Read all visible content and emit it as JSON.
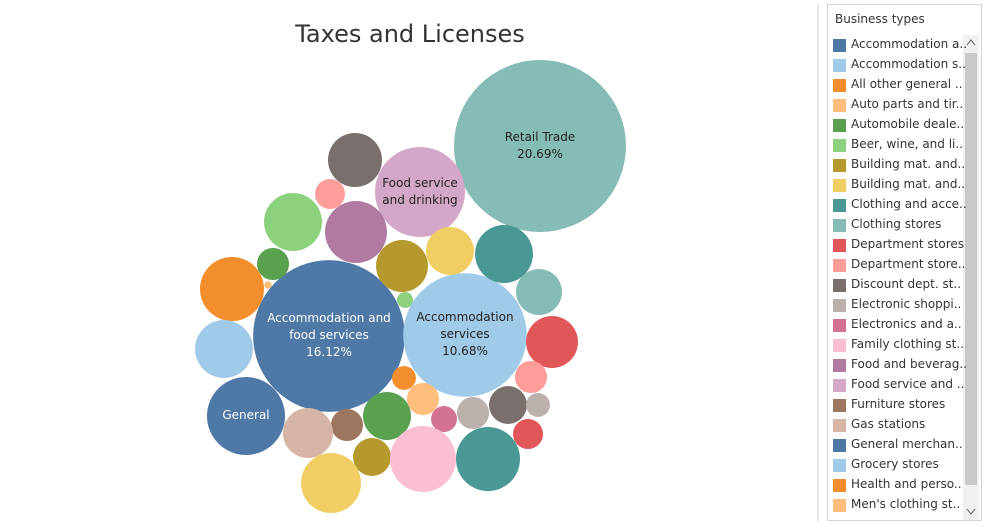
{
  "chart_data": {
    "type": "bubble",
    "title": "Taxes and Licenses",
    "categories": [
      "Retail Trade",
      "Accommodation and food services",
      "Accommodation services",
      "General",
      "Food service and drinking",
      null,
      null,
      null,
      null,
      null,
      null,
      null,
      null,
      null,
      null,
      null,
      null,
      null,
      null,
      null,
      null,
      null,
      null,
      null,
      null,
      null,
      null,
      null,
      null,
      null,
      null,
      null,
      null,
      null
    ],
    "values": [
      20.69,
      16.12,
      10.68,
      4.26,
      5.67,
      2.04,
      0.63,
      2.35,
      2.69,
      0.72,
      2.87,
      0.04,
      2.35,
      1.89,
      1.61,
      2.35,
      1.48,
      0.18,
      1.89,
      0.72,
      0.4,
      0.72,
      1.01,
      0.4,
      0.63,
      0.72,
      0.47,
      1.61,
      0.72,
      1.75,
      1.01,
      3.05,
      2.87,
      2.52
    ],
    "value_labels": [
      "20.69%",
      "16.12%",
      "10.68%",
      null,
      null,
      null,
      null,
      null,
      null,
      null,
      null,
      null,
      null,
      null,
      null,
      null,
      null,
      null,
      null,
      null,
      null,
      null,
      null,
      null,
      null,
      null,
      null,
      null,
      null,
      null,
      null,
      null,
      null,
      null
    ],
    "colors": [
      "#86bcb6",
      "#4e79a7",
      "#a0cbe8",
      "#4e79a7",
      "#d4a6c8",
      "#79706e",
      "#ff9d9a",
      "#8cd17d",
      "#b07aa1",
      "#59a14f",
      "#f28e2b",
      "#ffbe7d",
      "#a0cbe8",
      "#b6992d",
      "#f1ce63",
      "#499894",
      "#86bcb6",
      "#8cd17d",
      "#e15759",
      "#ff9d9a",
      "#f28e2b",
      "#ffbe7d",
      "#79706e",
      "#bab0ac",
      "#e15759",
      "#bab0ac",
      "#d37295",
      "#59a14f",
      "#9d7660",
      "#d7b5a6",
      "#b6992d",
      "#fabfd2",
      "#499894",
      "#f1ce63"
    ]
  },
  "legend": {
    "title": "Business types",
    "entries": [
      {
        "name": "Accommodation a..",
        "color": "#4e79a7"
      },
      {
        "name": "Accommodation s..",
        "color": "#a0cbe8"
      },
      {
        "name": "All other general ..",
        "color": "#f28e2b"
      },
      {
        "name": "Auto parts and tir..",
        "color": "#ffbe7d"
      },
      {
        "name": "Automobile deale..",
        "color": "#59a14f"
      },
      {
        "name": "Beer, wine, and li..",
        "color": "#8cd17d"
      },
      {
        "name": "Building mat. and..",
        "color": "#b6992d"
      },
      {
        "name": "Building mat. and..",
        "color": "#f1ce63"
      },
      {
        "name": "Clothing and acce..",
        "color": "#499894"
      },
      {
        "name": "Clothing stores",
        "color": "#86bcb6"
      },
      {
        "name": "Department stores",
        "color": "#e15759"
      },
      {
        "name": "Department store..",
        "color": "#ff9d9a"
      },
      {
        "name": "Discount dept. st..",
        "color": "#79706e"
      },
      {
        "name": "Electronic shoppi..",
        "color": "#bab0ac"
      },
      {
        "name": "Electronics and a..",
        "color": "#d37295"
      },
      {
        "name": "Family clothing st..",
        "color": "#fabfd2"
      },
      {
        "name": "Food and beverag..",
        "color": "#b07aa1"
      },
      {
        "name": "Food service and ..",
        "color": "#d4a6c8"
      },
      {
        "name": "Furniture stores",
        "color": "#9d7660"
      },
      {
        "name": "Gas stations",
        "color": "#d7b5a6"
      },
      {
        "name": "General merchan..",
        "color": "#4e79a7"
      },
      {
        "name": "Grocery stores",
        "color": "#a0cbe8"
      },
      {
        "name": "Health and perso..",
        "color": "#f28e2b"
      },
      {
        "name": "Men's clothing st..",
        "color": "#ffbe7d"
      }
    ]
  }
}
